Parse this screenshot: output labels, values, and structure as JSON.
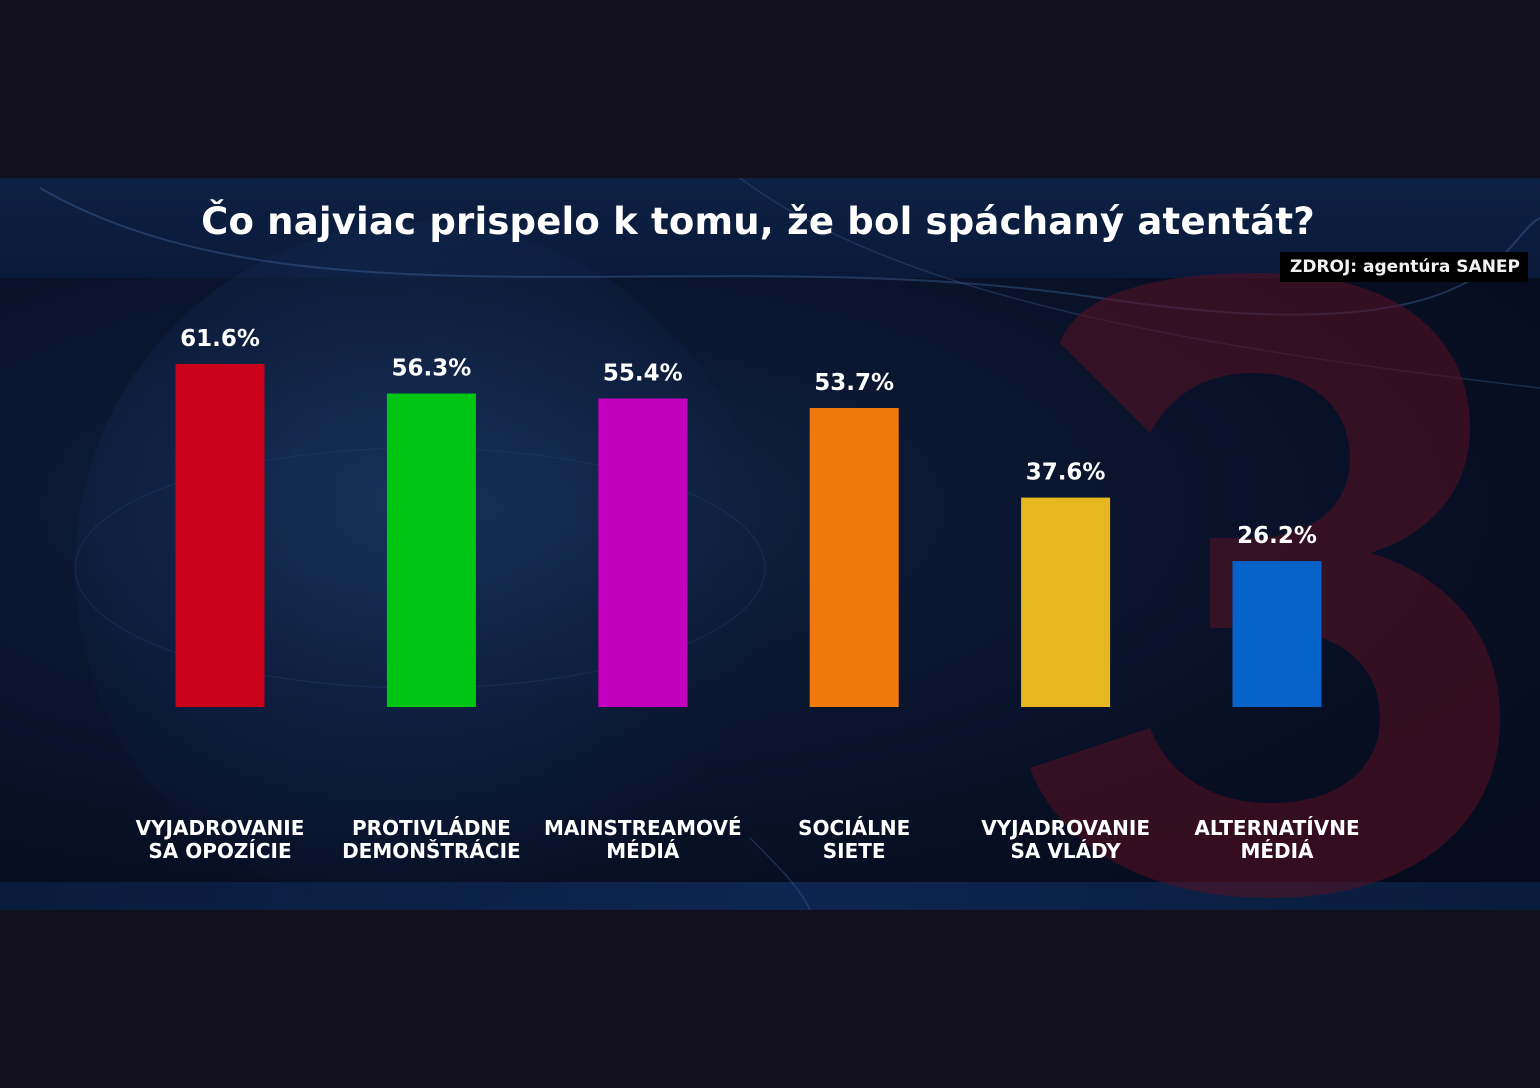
{
  "source": "ZDROJ: agentúra SANEP",
  "chart_data": {
    "type": "bar",
    "title": "Čo najviac prispelo k tomu, že bol spáchaný atentát?",
    "categories": [
      [
        "VYJADROVANIE",
        "SA OPOZÍCIE"
      ],
      [
        "PROTIVLÁDNE",
        "DEMONŠTRÁCIE"
      ],
      [
        "MAINSTREAMOVÉ",
        "MÉDIÁ"
      ],
      [
        "SOCIÁLNE",
        "SIETE"
      ],
      [
        "VYJADROVANIE",
        "SA VLÁDY"
      ],
      [
        "ALTERNATÍVNE",
        "MÉDIÁ"
      ]
    ],
    "values": [
      61.6,
      56.3,
      55.4,
      53.7,
      37.6,
      26.2
    ],
    "value_labels": [
      "61.6%",
      "56.3%",
      "55.4%",
      "53.7%",
      "37.6%",
      "26.2%"
    ],
    "colors": [
      "#c8001a",
      "#00c613",
      "#c300be",
      "#f27a0c",
      "#e6b820",
      "#0462c9"
    ],
    "ylim": [
      0,
      61.6
    ],
    "xlabel": "",
    "ylabel": "",
    "grid": false
  }
}
